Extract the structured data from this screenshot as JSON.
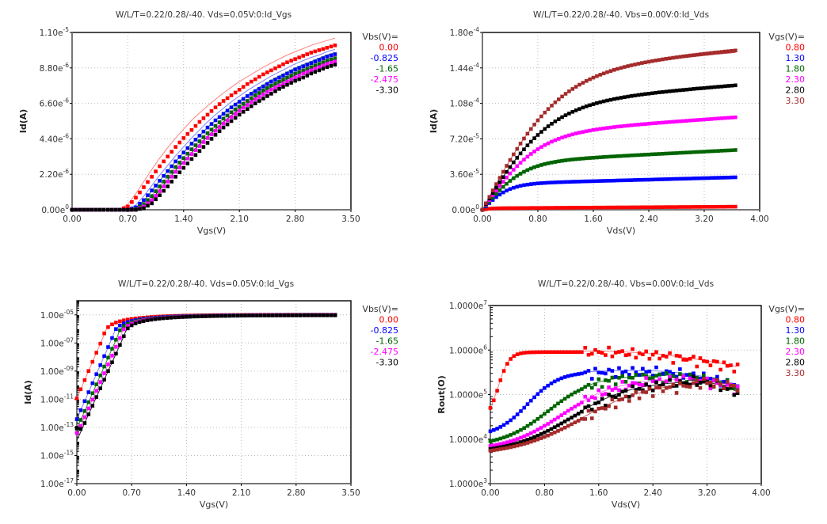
{
  "colors": {
    "red": "#ff0000",
    "blue": "#0000ff",
    "green": "#006400",
    "magenta": "#ff00ff",
    "black": "#000000",
    "brown": "#a52a2a"
  },
  "chart_data": [
    {
      "id": "idvg-linear",
      "type": "scatter",
      "title": "W/L/T=0.22/0.28/-40.  Vds=0.05V:0:Id_Vgs",
      "xlabel": "Vgs(V)",
      "ylabel": "Id(A)",
      "xscale": "linear",
      "yscale": "linear",
      "xlim": [
        0,
        3.5
      ],
      "ylim": [
        0,
        1.1e-05
      ],
      "xticks": [
        "0.00",
        "0.70",
        "1.40",
        "2.10",
        "2.80",
        "3.50"
      ],
      "xtick_values": [
        0,
        0.7,
        1.4,
        2.1,
        2.8,
        3.5
      ],
      "yticks": [
        {
          "value": 0,
          "mant": "0.00e",
          "exp": "0"
        },
        {
          "value": 2.2e-06,
          "mant": "2.20e",
          "exp": "-6"
        },
        {
          "value": 4.4e-06,
          "mant": "4.40e",
          "exp": "-6"
        },
        {
          "value": 6.6e-06,
          "mant": "6.60e",
          "exp": "-6"
        },
        {
          "value": 8.8e-06,
          "mant": "8.80e",
          "exp": "-6"
        },
        {
          "value": 1.1e-05,
          "mant": "1.10e",
          "exp": "-5"
        }
      ],
      "grid": true,
      "legend": {
        "position": "right",
        "title": "Vbs(V)=",
        "entries": [
          "0.00",
          "-0.825",
          "-1.65",
          "-2.475",
          "-3.30"
        ]
      },
      "x": [
        0,
        0.1,
        0.2,
        0.3,
        0.4,
        0.5,
        0.6,
        0.7,
        0.8,
        0.9,
        1.0,
        1.1,
        1.2,
        1.3,
        1.4,
        1.5,
        1.6,
        1.7,
        1.8,
        1.9,
        2.0,
        2.1,
        2.2,
        2.3,
        2.4,
        2.5,
        2.6,
        2.7,
        2.8,
        2.9,
        3.0,
        3.1,
        3.2,
        3.3
      ],
      "series": [
        {
          "name": "0.00",
          "color": "red",
          "vth": 0.62,
          "measured": [
            0,
            0,
            0,
            0,
            0,
            0,
            0,
            2e-07,
            7.5e-07,
            1.4e-06,
            2.05e-06,
            2.7e-06,
            3.3e-06,
            3.9e-06,
            4.45e-06,
            4.95e-06,
            5.45e-06,
            5.9e-06,
            6.35e-06,
            6.75e-06,
            7.1e-06,
            7.45e-06,
            7.8e-06,
            8.1e-06,
            8.4e-06,
            8.65e-06,
            8.9e-06,
            9.15e-06,
            9.35e-06,
            9.55e-06,
            9.75e-06,
            9.9e-06,
            1.005e-05,
            1.02e-05
          ],
          "model": [
            0,
            0,
            0,
            0,
            0,
            0,
            5e-08,
            3.5e-07,
            1e-06,
            1.75e-06,
            2.5e-06,
            3.2e-06,
            3.85e-06,
            4.45e-06,
            5e-06,
            5.55e-06,
            6e-06,
            6.45e-06,
            6.85e-06,
            7.25e-06,
            7.6e-06,
            7.95e-06,
            8.25e-06,
            8.55e-06,
            8.85e-06,
            9.1e-06,
            9.35e-06,
            9.6e-06,
            9.8e-06,
            1e-05,
            1.02e-05,
            1.035e-05,
            1.05e-05,
            1.065e-05
          ]
        },
        {
          "name": "-0.825",
          "color": "blue",
          "vth": 0.78,
          "measured": [
            0,
            0,
            0,
            0,
            0,
            0,
            0,
            0,
            1.5e-07,
            6e-07,
            1.2e-06,
            1.8e-06,
            2.4e-06,
            3e-06,
            3.55e-06,
            4.1e-06,
            4.6e-06,
            5.1e-06,
            5.55e-06,
            5.95e-06,
            6.35e-06,
            6.7e-06,
            7.05e-06,
            7.35e-06,
            7.65e-06,
            7.95e-06,
            8.2e-06,
            8.45e-06,
            8.7e-06,
            8.9e-06,
            9.1e-06,
            9.3e-06,
            9.5e-06,
            9.65e-06
          ],
          "model": [
            0,
            0,
            0,
            0,
            0,
            0,
            0,
            2e-08,
            3e-07,
            8.5e-07,
            1.5e-06,
            2.15e-06,
            2.75e-06,
            3.35e-06,
            3.9e-06,
            4.45e-06,
            4.95e-06,
            5.45e-06,
            5.9e-06,
            6.3e-06,
            6.7e-06,
            7.05e-06,
            7.4e-06,
            7.7e-06,
            8e-06,
            8.3e-06,
            8.55e-06,
            8.8e-06,
            9.05e-06,
            9.25e-06,
            9.45e-06,
            9.6e-06,
            9.8e-06,
            9.95e-06
          ]
        },
        {
          "name": "-1.65",
          "color": "green",
          "vth": 0.86,
          "measured": [
            0,
            0,
            0,
            0,
            0,
            0,
            0,
            0,
            5e-08,
            3.5e-07,
            8.5e-07,
            1.45e-06,
            2.05e-06,
            2.65e-06,
            3.2e-06,
            3.75e-06,
            4.25e-06,
            4.75e-06,
            5.2e-06,
            5.65e-06,
            6.05e-06,
            6.4e-06,
            6.75e-06,
            7.1e-06,
            7.4e-06,
            7.7e-06,
            7.95e-06,
            8.2e-06,
            8.45e-06,
            8.65e-06,
            8.85e-06,
            9.05e-06,
            9.25e-06,
            9.4e-06
          ],
          "model": [
            0,
            0,
            0,
            0,
            0,
            0,
            0,
            0,
            1.2e-07,
            5.5e-07,
            1.15e-06,
            1.8e-06,
            2.4e-06,
            3e-06,
            3.55e-06,
            4.1e-06,
            4.6e-06,
            5.1e-06,
            5.55e-06,
            6e-06,
            6.4e-06,
            6.75e-06,
            7.1e-06,
            7.45e-06,
            7.75e-06,
            8.05e-06,
            8.3e-06,
            8.55e-06,
            8.8e-06,
            9e-06,
            9.2e-06,
            9.4e-06,
            9.6e-06,
            9.75e-06
          ]
        },
        {
          "name": "-2.475",
          "color": "magenta",
          "vth": 0.93,
          "measured": [
            0,
            0,
            0,
            0,
            0,
            0,
            0,
            0,
            0,
            2e-07,
            6e-07,
            1.15e-06,
            1.75e-06,
            2.35e-06,
            2.9e-06,
            3.45e-06,
            3.95e-06,
            4.45e-06,
            4.9e-06,
            5.35e-06,
            5.75e-06,
            6.15e-06,
            6.5e-06,
            6.85e-06,
            7.15e-06,
            7.45e-06,
            7.7e-06,
            7.95e-06,
            8.2e-06,
            8.45e-06,
            8.65e-06,
            8.85e-06,
            9.05e-06,
            9.2e-06
          ],
          "model": [
            0,
            0,
            0,
            0,
            0,
            0,
            0,
            0,
            5e-08,
            3.5e-07,
            9e-07,
            1.5e-06,
            2.1e-06,
            2.7e-06,
            3.25e-06,
            3.8e-06,
            4.3e-06,
            4.8e-06,
            5.25e-06,
            5.7e-06,
            6.1e-06,
            6.5e-06,
            6.85e-06,
            7.2e-06,
            7.5e-06,
            7.8e-06,
            8.05e-06,
            8.3e-06,
            8.55e-06,
            8.8e-06,
            9e-06,
            9.2e-06,
            9.35e-06,
            9.55e-06
          ]
        },
        {
          "name": "-3.30",
          "color": "black",
          "vth": 1.0,
          "measured": [
            0,
            0,
            0,
            0,
            0,
            0,
            0,
            0,
            0,
            1e-07,
            4e-07,
            9e-07,
            1.45e-06,
            2.05e-06,
            2.6e-06,
            3.15e-06,
            3.65e-06,
            4.15e-06,
            4.65e-06,
            5.1e-06,
            5.5e-06,
            5.9e-06,
            6.25e-06,
            6.6e-06,
            6.9e-06,
            7.2e-06,
            7.5e-06,
            7.75e-06,
            8e-06,
            8.2e-06,
            8.45e-06,
            8.65e-06,
            8.85e-06,
            9e-06
          ],
          "model": [
            0,
            0,
            0,
            0,
            0,
            0,
            0,
            0,
            2e-08,
            2e-07,
            6.5e-07,
            1.25e-06,
            1.85e-06,
            2.45e-06,
            3e-06,
            3.55e-06,
            4.05e-06,
            4.55e-06,
            5e-06,
            5.45e-06,
            5.85e-06,
            6.25e-06,
            6.6e-06,
            6.95e-06,
            7.3e-06,
            7.6e-06,
            7.85e-06,
            8.1e-06,
            8.35e-06,
            8.6e-06,
            8.8e-06,
            9e-06,
            9.2e-06,
            9.35e-06
          ]
        }
      ]
    },
    {
      "id": "idvd",
      "type": "scatter",
      "title": "W/L/T=0.22/0.28/-40.  Vbs=0.00V:0:Id_Vds",
      "xlabel": "Vds(V)",
      "ylabel": "Id(A)",
      "xscale": "linear",
      "yscale": "linear",
      "xlim": [
        0,
        4.0
      ],
      "ylim": [
        0,
        0.00018
      ],
      "xticks": [
        "0.00",
        "0.80",
        "1.60",
        "2.40",
        "3.20",
        "4.00"
      ],
      "xtick_values": [
        0,
        0.8,
        1.6,
        2.4,
        3.2,
        4.0
      ],
      "yticks": [
        {
          "value": 0,
          "mant": "0.00e",
          "exp": "0"
        },
        {
          "value": 3.6e-05,
          "mant": "3.60e",
          "exp": "-5"
        },
        {
          "value": 7.2e-05,
          "mant": "7.20e",
          "exp": "-5"
        },
        {
          "value": 0.000108,
          "mant": "1.08e",
          "exp": "-4"
        },
        {
          "value": 0.000144,
          "mant": "1.44e",
          "exp": "-4"
        },
        {
          "value": 0.00018,
          "mant": "1.80e",
          "exp": "-4"
        }
      ],
      "grid": true,
      "legend": {
        "position": "right",
        "title": "Vgs(V)=",
        "entries": [
          "0.80",
          "1.30",
          "1.80",
          "2.30",
          "2.80",
          "3.30"
        ]
      },
      "xmax_data": 3.65,
      "series": [
        {
          "name": "0.80",
          "color": "red",
          "isat": 1.5e-06,
          "vdsat": 0.15,
          "slope": 4.5e-07,
          "model_offset": 0.0
        },
        {
          "name": "1.30",
          "color": "blue",
          "isat": 2.6e-05,
          "vdsat": 0.45,
          "slope": 1.9e-06,
          "model_offset": 1.5e-06
        },
        {
          "name": "1.80",
          "color": "green",
          "isat": 4.75e-05,
          "vdsat": 0.7,
          "slope": 3.6e-06,
          "model_offset": 2.2e-06
        },
        {
          "name": "2.30",
          "color": "magenta",
          "isat": 7.6e-05,
          "vdsat": 0.95,
          "slope": 4.9e-06,
          "model_offset": 2.5e-06
        },
        {
          "name": "2.80",
          "color": "black",
          "isat": 0.000106,
          "vdsat": 1.15,
          "slope": 5.6e-06,
          "model_offset": 2e-06
        },
        {
          "name": "3.30",
          "color": "brown",
          "isat": 0.000138,
          "vdsat": 1.3,
          "slope": 6.6e-06,
          "model_offset": 1.5e-06
        }
      ]
    },
    {
      "id": "idvg-log",
      "type": "scatter",
      "title": "W/L/T=0.22/0.28/-40.  Vds=0.05V:0:Id_Vgs",
      "xlabel": "Vgs(V)",
      "ylabel": "Id(A)",
      "xscale": "linear",
      "yscale": "log",
      "xlim": [
        0,
        3.5
      ],
      "ylim": [
        1e-17,
        0.0001
      ],
      "xticks": [
        "0.00",
        "0.70",
        "1.40",
        "2.10",
        "2.80",
        "3.50"
      ],
      "xtick_values": [
        0,
        0.7,
        1.4,
        2.1,
        2.8,
        3.5
      ],
      "yticks": [
        {
          "value": 1e-17,
          "mant": "1.00e",
          "exp": "-17"
        },
        {
          "value": 1e-15,
          "mant": "1.00e",
          "exp": "-15"
        },
        {
          "value": 1e-13,
          "mant": "1.00e",
          "exp": "-13"
        },
        {
          "value": 1e-11,
          "mant": "1.00e",
          "exp": "-11"
        },
        {
          "value": 1e-09,
          "mant": "1.00e",
          "exp": "-09"
        },
        {
          "value": 1e-07,
          "mant": "1.00e",
          "exp": "-07"
        },
        {
          "value": 1e-05,
          "mant": "1.00e",
          "exp": "-05"
        }
      ],
      "grid": true,
      "legend": {
        "position": "right",
        "title": "Vbs(V)=",
        "entries": [
          "0.00",
          "-0.825",
          "-1.65",
          "-2.475",
          "-3.30"
        ]
      },
      "series": [
        {
          "name": "0.00",
          "color": "red",
          "vth": 0.34,
          "floor_meas": 2e-14,
          "floor_model": 1e-17,
          "ss": 0.077,
          "ion": 1e-05
        },
        {
          "name": "-0.825",
          "color": "blue",
          "vth": 0.46,
          "floor_meas": 4e-14,
          "floor_model": 1e-15,
          "ss": 0.078,
          "ion": 9.6e-06
        },
        {
          "name": "-1.65",
          "color": "green",
          "vth": 0.52,
          "floor_meas": 6e-14,
          "floor_model": 2e-15,
          "ss": 0.079,
          "ion": 9.4e-06
        },
        {
          "name": "-2.475",
          "color": "magenta",
          "vth": 0.56,
          "floor_meas": 5e-14,
          "floor_model": 3e-15,
          "ss": 0.08,
          "ion": 9.2e-06
        },
        {
          "name": "-3.30",
          "color": "black",
          "vth": 0.6,
          "floor_meas": 8e-14,
          "floor_model": 4e-15,
          "ss": 0.081,
          "ion": 9e-06
        }
      ]
    },
    {
      "id": "rout-vd",
      "type": "scatter",
      "title": "W/L/T=0.22/0.28/-40.  Vbs=0.00V:0:Id_Vds",
      "xlabel": "Vds(V)",
      "ylabel": "Rout(O)",
      "xscale": "linear",
      "yscale": "log",
      "xlim": [
        0,
        4.0
      ],
      "ylim": [
        1000,
        10000000
      ],
      "xticks": [
        "0.00",
        "0.80",
        "1.60",
        "2.40",
        "3.20",
        "4.00"
      ],
      "xtick_values": [
        0,
        0.8,
        1.6,
        2.4,
        3.2,
        4.0
      ],
      "yticks": [
        {
          "value": 1000,
          "mant": "1.0000e",
          "exp": "3"
        },
        {
          "value": 10000,
          "mant": "1.0000e",
          "exp": "4"
        },
        {
          "value": 100000,
          "mant": "1.0000e",
          "exp": "5"
        },
        {
          "value": 1000000,
          "mant": "1.0000e",
          "exp": "6"
        },
        {
          "value": 10000000,
          "mant": "1.0000e",
          "exp": "7"
        }
      ],
      "grid": true,
      "legend": {
        "position": "right",
        "title": "Vgs(V)=",
        "entries": [
          "0.80",
          "1.30",
          "1.80",
          "2.30",
          "2.80",
          "3.30"
        ]
      },
      "xmax_data": 3.65,
      "series": [
        {
          "name": "0.80",
          "color": "red",
          "r0": 50000,
          "rpeak": 900000,
          "vknee": 0.12,
          "vpeak": 1.5,
          "rend": 400000
        },
        {
          "name": "1.30",
          "color": "blue",
          "r0": 15000,
          "rpeak": 330000,
          "vknee": 0.55,
          "vpeak": 2.2,
          "rend": 160000
        },
        {
          "name": "1.80",
          "color": "green",
          "r0": 9000,
          "rpeak": 260000,
          "vknee": 0.85,
          "vpeak": 2.6,
          "rend": 140000
        },
        {
          "name": "2.30",
          "color": "magenta",
          "r0": 7000,
          "rpeak": 220000,
          "vknee": 1.05,
          "vpeak": 2.8,
          "rend": 130000
        },
        {
          "name": "2.80",
          "color": "black",
          "r0": 6000,
          "rpeak": 200000,
          "vknee": 1.2,
          "vpeak": 2.9,
          "rend": 110000
        },
        {
          "name": "3.30",
          "color": "brown",
          "r0": 5500,
          "rpeak": 190000,
          "vknee": 1.35,
          "vpeak": 3.0,
          "rend": 150000
        }
      ]
    }
  ]
}
